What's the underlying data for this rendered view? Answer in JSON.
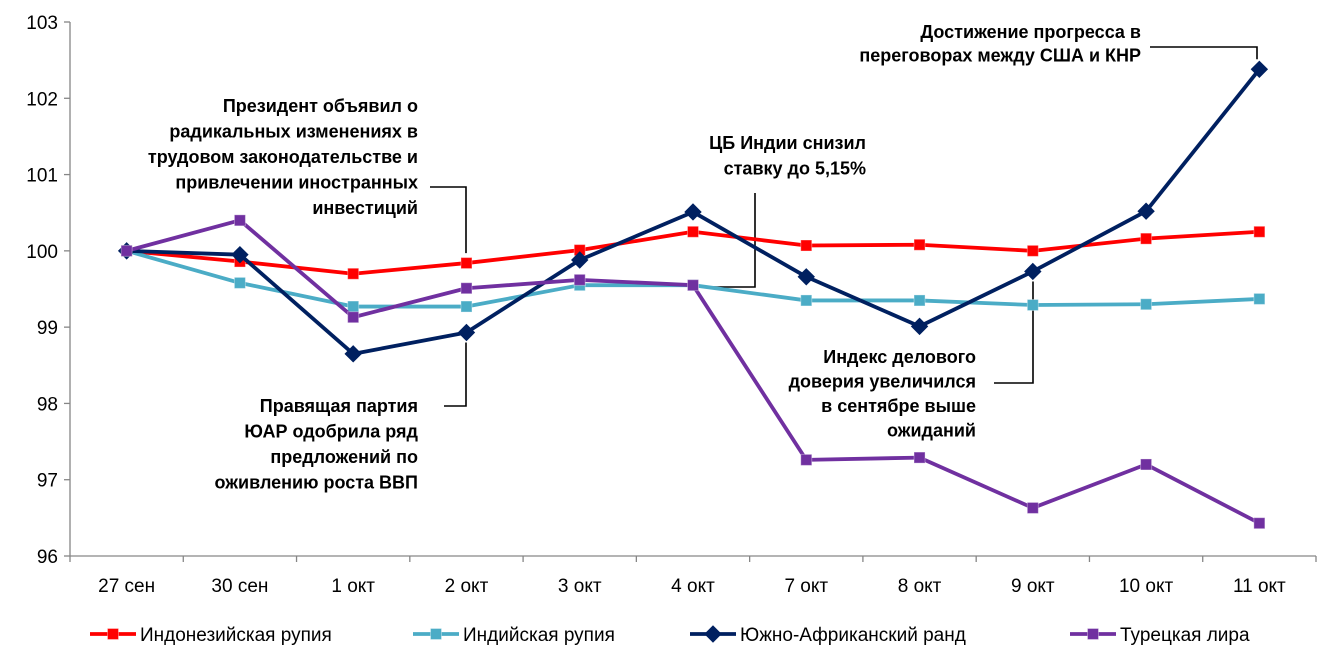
{
  "chart_data": {
    "type": "line",
    "categories": [
      "27 сен",
      "30 сен",
      "1 окт",
      "2 окт",
      "3 окт",
      "4 окт",
      "7 окт",
      "8 окт",
      "9 окт",
      "10 окт",
      "11 окт"
    ],
    "ylim": [
      96,
      103
    ],
    "yticks": [
      "96",
      "97",
      "98",
      "99",
      "100",
      "101",
      "102",
      "103"
    ],
    "grid": false,
    "legend": "bottom",
    "series": [
      {
        "name": "Индонезийская рупия",
        "color": "#ff0000",
        "marker": "square",
        "values": [
          100,
          99.86,
          99.7,
          99.84,
          100.01,
          100.25,
          100.07,
          100.08,
          100.0,
          100.16,
          100.25
        ]
      },
      {
        "name": "Индийская рупия",
        "color": "#4bacc6",
        "marker": "square",
        "values": [
          100,
          99.58,
          99.27,
          99.27,
          99.55,
          99.55,
          99.35,
          99.35,
          99.29,
          99.3,
          99.37
        ]
      },
      {
        "name": "Южно-Африканский  ранд",
        "color": "#002060",
        "marker": "diamond",
        "values": [
          100,
          99.95,
          98.65,
          98.93,
          99.88,
          100.51,
          99.66,
          99.01,
          99.73,
          100.52,
          102.38
        ]
      },
      {
        "name": "Турецкая лира",
        "color": "#7030a0",
        "marker": "square",
        "values": [
          100,
          100.4,
          99.13,
          99.51,
          99.62,
          99.55,
          97.26,
          97.29,
          96.63,
          97.2,
          96.43
        ]
      }
    ],
    "annotations": [
      {
        "lines": [
          "Президент объявил о",
          "радикальных изменениях в",
          "трудовом законодательстве и",
          "привлечении иностранных",
          "инвестиций"
        ]
      },
      {
        "lines": [
          "Правящая партия",
          "ЮАР одобрила ряд",
          "предложений по",
          "оживлению роста ВВП"
        ]
      },
      {
        "lines": [
          "ЦБ Индии снизил",
          "ставку до 5,15%"
        ]
      },
      {
        "lines": [
          "Индекс делового",
          "доверия увеличился",
          "в сентябре выше",
          "ожиданий"
        ]
      },
      {
        "lines": [
          "Достижение прогресса в",
          "переговорах между США и КНР"
        ]
      }
    ]
  }
}
